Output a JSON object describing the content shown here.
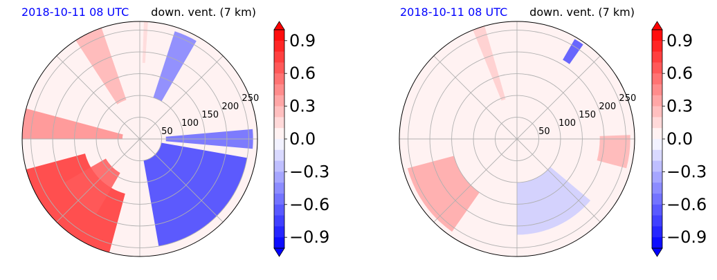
{
  "chart_data": [
    {
      "type": "heatmap",
      "projection": "polar",
      "title_left": "2018-10-11 08 UTC",
      "title_right": "down. vent. (7 km)",
      "title_left_color": "#0000ff",
      "radial_tick_labels": [
        "50",
        "100",
        "150",
        "200",
        "250"
      ],
      "radial_ticks": [
        50,
        100,
        150,
        200,
        250
      ],
      "radial_lim": [
        0,
        270
      ],
      "grid": true,
      "colormap": "bwr",
      "colorbar": {
        "ticks": [
          0.9,
          0.6,
          0.3,
          0.0,
          -0.3,
          -0.6,
          -0.9
        ],
        "tick_labels": [
          "0.9",
          "0.6",
          "0.3",
          "0.0",
          "−0.3",
          "−0.6",
          "−0.9"
        ],
        "range": [
          -1.0,
          1.0
        ],
        "extend": "both"
      },
      "features": [
        {
          "kind": "streak",
          "theta": [
            109,
            123
          ],
          "r": [
            95,
            270
          ],
          "value": 0.3
        },
        {
          "kind": "streak",
          "theta": [
            86,
            88
          ],
          "r": [
            175,
            270
          ],
          "value": 0.15
        },
        {
          "kind": "streak",
          "theta": [
            60,
            72
          ],
          "r": [
            100,
            260
          ],
          "value": -0.5
        },
        {
          "kind": "band",
          "theta": [
            165,
            180
          ],
          "r": [
            40,
            270
          ],
          "value": 0.45
        },
        {
          "kind": "band",
          "theta": [
            195,
            255
          ],
          "r": [
            130,
            270
          ],
          "value": 0.8
        },
        {
          "kind": "band",
          "theta": [
            210,
            240
          ],
          "r": [
            90,
            200
          ],
          "value": 0.65
        },
        {
          "kind": "band",
          "theta": [
            280,
            350
          ],
          "r": [
            50,
            250
          ],
          "value": -0.75
        },
        {
          "kind": "band",
          "theta": [
            355,
            365
          ],
          "r": [
            60,
            260
          ],
          "value": -0.6
        }
      ]
    },
    {
      "type": "heatmap",
      "projection": "polar",
      "title_left": "2018-10-11 08 UTC",
      "title_right": "down. vent. (7 km)",
      "title_left_color": "#0000ff",
      "radial_tick_labels": [
        "50",
        "100",
        "150",
        "200",
        "250"
      ],
      "radial_ticks": [
        50,
        100,
        150,
        200,
        250
      ],
      "radial_lim": [
        0,
        270
      ],
      "grid": true,
      "colormap": "bwr",
      "colorbar": {
        "ticks": [
          0.9,
          0.6,
          0.3,
          0.0,
          -0.3,
          -0.6,
          -0.9
        ],
        "tick_labels": [
          "0.9",
          "0.6",
          "0.3",
          "0.0",
          "−0.3",
          "−0.6",
          "−0.9"
        ],
        "range": [
          -1.0,
          1.0
        ],
        "extend": "both"
      },
      "features": [
        {
          "kind": "streak",
          "theta": [
            106,
            112
          ],
          "r": [
            95,
            270
          ],
          "value": 0.2
        },
        {
          "kind": "streak",
          "theta": [
            55,
            60
          ],
          "r": [
            210,
            265
          ],
          "value": -0.7
        },
        {
          "kind": "band",
          "theta": [
            195,
            235
          ],
          "r": [
            150,
            260
          ],
          "value": 0.35
        },
        {
          "kind": "band",
          "theta": [
            270,
            320
          ],
          "r": [
            100,
            220
          ],
          "value": -0.2
        },
        {
          "kind": "band",
          "theta": [
            345,
            362
          ],
          "r": [
            190,
            260
          ],
          "value": 0.3
        }
      ]
    }
  ]
}
